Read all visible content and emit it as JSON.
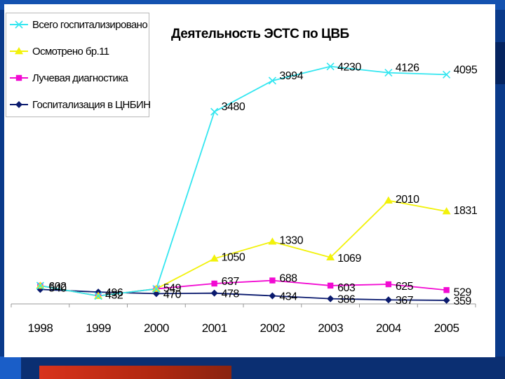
{
  "colors": {
    "total": "#33e6f0",
    "examined": "#f2f20a",
    "radiology": "#f20ad2",
    "hospitalized": "#0a1a6e"
  },
  "chart_data": {
    "type": "line",
    "title": "Деятельность ЭСТС по ЦВБ",
    "categories": [
      "1998",
      "1999",
      "2000",
      "2001",
      "2002",
      "2003",
      "2004",
      "2005"
    ],
    "ylim": [
      300,
      4400
    ],
    "grid": false,
    "legend_position": "top-left",
    "series": [
      {
        "key": "total",
        "name": "Всего госпитализировано",
        "marker": "x",
        "values": [
          602,
          432,
          549,
          3480,
          3994,
          4230,
          4126,
          4095
        ]
      },
      {
        "key": "examined",
        "name": "Осмотрено бр.11",
        "marker": "triangle",
        "values": [
          602,
          432,
          549,
          1050,
          1330,
          1069,
          2010,
          1831
        ]
      },
      {
        "key": "radiology",
        "name": "Лучевая диагностика",
        "marker": "square",
        "values": [
          602,
          432,
          549,
          637,
          688,
          603,
          625,
          529
        ]
      },
      {
        "key": "hospitalized",
        "name": "Госпитализация в ЦНБИН",
        "marker": "diamond",
        "values": [
          540,
          496,
          470,
          478,
          434,
          386,
          367,
          359
        ]
      }
    ],
    "data_labels": [
      {
        "series": "total",
        "values": [
          "602",
          "432",
          "549",
          "3480",
          "3994",
          "4230",
          "4126",
          "4095"
        ]
      },
      {
        "series": "examined",
        "values": [
          "",
          "",
          "",
          "1050",
          "1330",
          "1069",
          "2010",
          "1831"
        ]
      },
      {
        "series": "radiology",
        "values": [
          "",
          "",
          "",
          "637",
          "688",
          "603",
          "625",
          "529"
        ]
      },
      {
        "series": "hospitalized",
        "values": [
          "540",
          "496",
          "470",
          "478",
          "434",
          "386",
          "367",
          "359"
        ]
      }
    ]
  }
}
